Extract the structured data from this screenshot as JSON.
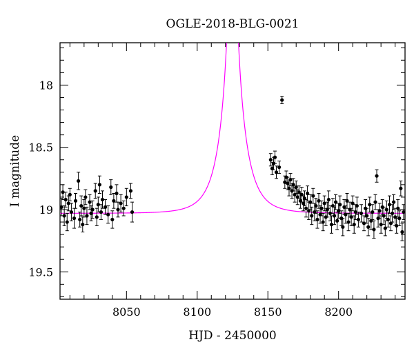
{
  "chart_data": {
    "type": "scatter",
    "title": "OGLE-2018-BLG-0021",
    "xlabel": "HJD - 2450000",
    "ylabel": "I magnitude",
    "xlim": [
      8003,
      8247
    ],
    "ylim": [
      19.72,
      17.66
    ],
    "y_inverted": true,
    "grid": false,
    "legend": "none",
    "x_ticks": [
      8050,
      8100,
      8150,
      8200
    ],
    "x_tick_labels": [
      "8050",
      "8100",
      "8150",
      "8200"
    ],
    "y_ticks": [
      18,
      18.5,
      19,
      19.5
    ],
    "y_tick_labels": [
      "18",
      "18.5",
      "19",
      "19.5"
    ],
    "colors": {
      "data": "#000000",
      "model": "#ff00ff"
    },
    "model": {
      "t0": 8125,
      "tE": 14.5,
      "u0": 0.005,
      "I_base": 19.03
    },
    "series": [
      {
        "points": [
          [
            8004,
            18.98,
            0.07
          ],
          [
            8005,
            18.86,
            0.06
          ],
          [
            8006,
            19.05,
            0.08
          ],
          [
            8007,
            18.92,
            0.06
          ],
          [
            8008,
            19.1,
            0.07
          ],
          [
            8009,
            18.95,
            0.06
          ],
          [
            8010,
            18.88,
            0.05
          ],
          [
            8011,
            19.02,
            0.07
          ],
          [
            8013,
            19.07,
            0.08
          ],
          [
            8014,
            18.93,
            0.06
          ],
          [
            8016,
            18.77,
            0.07
          ],
          [
            8017,
            19.08,
            0.06
          ],
          [
            8018,
            18.97,
            0.08
          ],
          [
            8019,
            19.12,
            0.06
          ],
          [
            8020,
            18.99,
            0.07
          ],
          [
            8021,
            18.9,
            0.06
          ],
          [
            8022,
            19.05,
            0.07
          ],
          [
            8024,
            18.94,
            0.06
          ],
          [
            8025,
            19.03,
            0.06
          ],
          [
            8026,
            19.0,
            0.07
          ],
          [
            8028,
            18.85,
            0.06
          ],
          [
            8029,
            19.06,
            0.07
          ],
          [
            8030,
            18.96,
            0.06
          ],
          [
            8031,
            18.8,
            0.07
          ],
          [
            8032,
            19.02,
            0.06
          ],
          [
            8033,
            18.92,
            0.07
          ],
          [
            8035,
            18.98,
            0.06
          ],
          [
            8037,
            19.04,
            0.07
          ],
          [
            8039,
            18.82,
            0.06
          ],
          [
            8040,
            19.08,
            0.07
          ],
          [
            8041,
            18.93,
            0.06
          ],
          [
            8043,
            18.87,
            0.07
          ],
          [
            8044,
            19.0,
            0.06
          ],
          [
            8046,
            18.95,
            0.07
          ],
          [
            8048,
            18.99,
            0.06
          ],
          [
            8050,
            18.9,
            0.07
          ],
          [
            8053,
            18.85,
            0.06
          ],
          [
            8054,
            19.02,
            0.08
          ],
          [
            8152,
            18.6,
            0.05
          ],
          [
            8153,
            18.67,
            0.05
          ],
          [
            8154,
            18.63,
            0.05
          ],
          [
            8155,
            18.58,
            0.05
          ],
          [
            8156,
            18.7,
            0.05
          ],
          [
            8158,
            18.66,
            0.05
          ],
          [
            8160,
            18.12,
            0.03
          ],
          [
            8162,
            18.78,
            0.05
          ],
          [
            8163,
            18.74,
            0.05
          ],
          [
            8164,
            18.79,
            0.05
          ],
          [
            8165,
            18.83,
            0.06
          ],
          [
            8166,
            18.76,
            0.05
          ],
          [
            8167,
            18.85,
            0.06
          ],
          [
            8168,
            18.8,
            0.05
          ],
          [
            8169,
            18.88,
            0.06
          ],
          [
            8170,
            18.82,
            0.05
          ],
          [
            8171,
            18.9,
            0.06
          ],
          [
            8172,
            18.86,
            0.05
          ],
          [
            8173,
            18.93,
            0.06
          ],
          [
            8174,
            18.88,
            0.06
          ],
          [
            8175,
            18.95,
            0.06
          ],
          [
            8176,
            18.91,
            0.06
          ],
          [
            8177,
            18.99,
            0.07
          ],
          [
            8178,
            18.87,
            0.06
          ],
          [
            8179,
            19.01,
            0.07
          ],
          [
            8180,
            18.94,
            0.06
          ],
          [
            8181,
            19.05,
            0.07
          ],
          [
            8182,
            18.89,
            0.06
          ],
          [
            8183,
            19.02,
            0.07
          ],
          [
            8184,
            18.97,
            0.06
          ],
          [
            8185,
            19.08,
            0.07
          ],
          [
            8186,
            18.93,
            0.06
          ],
          [
            8187,
            19.04,
            0.07
          ],
          [
            8188,
            18.99,
            0.06
          ],
          [
            8189,
            19.1,
            0.07
          ],
          [
            8190,
            18.95,
            0.06
          ],
          [
            8191,
            19.06,
            0.07
          ],
          [
            8192,
            19.0,
            0.06
          ],
          [
            8193,
            18.92,
            0.07
          ],
          [
            8194,
            19.03,
            0.06
          ],
          [
            8195,
            19.12,
            0.07
          ],
          [
            8196,
            18.97,
            0.06
          ],
          [
            8197,
            19.05,
            0.07
          ],
          [
            8198,
            18.94,
            0.06
          ],
          [
            8199,
            19.09,
            0.07
          ],
          [
            8200,
            19.01,
            0.06
          ],
          [
            8201,
            18.96,
            0.07
          ],
          [
            8202,
            19.07,
            0.06
          ],
          [
            8203,
            19.14,
            0.07
          ],
          [
            8204,
            18.98,
            0.06
          ],
          [
            8205,
            19.04,
            0.07
          ],
          [
            8206,
            18.93,
            0.06
          ],
          [
            8207,
            19.1,
            0.07
          ],
          [
            8208,
            19.0,
            0.06
          ],
          [
            8209,
            19.06,
            0.07
          ],
          [
            8210,
            18.95,
            0.06
          ],
          [
            8211,
            19.12,
            0.07
          ],
          [
            8212,
            19.02,
            0.06
          ],
          [
            8213,
            18.97,
            0.07
          ],
          [
            8214,
            19.08,
            0.06
          ],
          [
            8216,
            19.03,
            0.07
          ],
          [
            8218,
            19.11,
            0.06
          ],
          [
            8219,
            18.99,
            0.07
          ],
          [
            8220,
            19.05,
            0.06
          ],
          [
            8221,
            19.14,
            0.07
          ],
          [
            8222,
            18.96,
            0.06
          ],
          [
            8223,
            19.09,
            0.07
          ],
          [
            8224,
            19.02,
            0.06
          ],
          [
            8225,
            19.16,
            0.07
          ],
          [
            8226,
            18.94,
            0.06
          ],
          [
            8227,
            18.73,
            0.05
          ],
          [
            8228,
            19.07,
            0.07
          ],
          [
            8229,
            19.01,
            0.06
          ],
          [
            8230,
            19.12,
            0.07
          ],
          [
            8231,
            18.98,
            0.06
          ],
          [
            8232,
            19.05,
            0.07
          ],
          [
            8233,
            19.15,
            0.06
          ],
          [
            8234,
            19.0,
            0.07
          ],
          [
            8235,
            19.08,
            0.06
          ],
          [
            8236,
            18.96,
            0.07
          ],
          [
            8237,
            19.11,
            0.06
          ],
          [
            8238,
            19.03,
            0.07
          ],
          [
            8239,
            18.94,
            0.06
          ],
          [
            8240,
            19.06,
            0.07
          ],
          [
            8241,
            19.13,
            0.06
          ],
          [
            8242,
            18.99,
            0.07
          ],
          [
            8243,
            19.07,
            0.06
          ],
          [
            8244,
            18.83,
            0.06
          ],
          [
            8245,
            19.18,
            0.07
          ],
          [
            8246,
            19.02,
            0.06
          ]
        ]
      }
    ]
  }
}
